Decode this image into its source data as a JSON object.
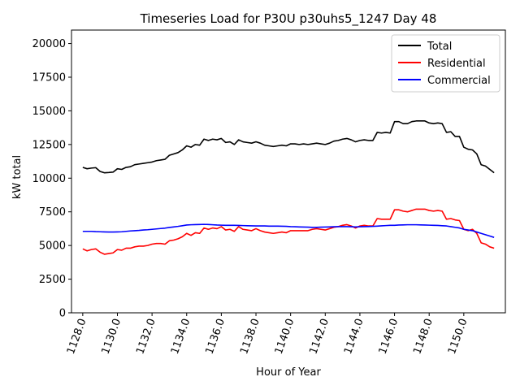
{
  "chart_data": {
    "type": "line",
    "title": "Timeseries Load for P30U p30uhs5_1247  Day 48",
    "xlabel": "Hour of Year",
    "ylabel": "kW total",
    "xlim": [
      1127.35,
      1152.4
    ],
    "ylim": [
      0,
      21000
    ],
    "xticks": [
      1128.0,
      1130.0,
      1132.0,
      1134.0,
      1136.0,
      1138.0,
      1140.0,
      1142.0,
      1144.0,
      1146.0,
      1148.0,
      1150.0
    ],
    "xtick_labels": [
      "1128.0",
      "1130.0",
      "1132.0",
      "1134.0",
      "1136.0",
      "1138.0",
      "1140.0",
      "1142.0",
      "1144.0",
      "1146.0",
      "1148.0",
      "1150.0"
    ],
    "yticks": [
      0,
      2500,
      5000,
      7500,
      10000,
      12500,
      15000,
      17500,
      20000
    ],
    "ytick_labels": [
      "0",
      "2500",
      "5000",
      "7500",
      "10000",
      "12500",
      "15000",
      "17500",
      "20000"
    ],
    "legend_position": "top-right",
    "x": [
      1128.0,
      1128.25,
      1128.5,
      1128.75,
      1129.0,
      1129.25,
      1129.5,
      1129.75,
      1130.0,
      1130.25,
      1130.5,
      1130.75,
      1131.0,
      1131.25,
      1131.5,
      1131.75,
      1132.0,
      1132.25,
      1132.5,
      1132.75,
      1133.0,
      1133.25,
      1133.5,
      1133.75,
      1134.0,
      1134.25,
      1134.5,
      1134.75,
      1135.0,
      1135.25,
      1135.5,
      1135.75,
      1136.0,
      1136.25,
      1136.5,
      1136.75,
      1137.0,
      1137.25,
      1137.5,
      1137.75,
      1138.0,
      1138.25,
      1138.5,
      1138.75,
      1139.0,
      1139.25,
      1139.5,
      1139.75,
      1140.0,
      1140.25,
      1140.5,
      1140.75,
      1141.0,
      1141.25,
      1141.5,
      1141.75,
      1142.0,
      1142.25,
      1142.5,
      1142.75,
      1143.0,
      1143.25,
      1143.5,
      1143.75,
      1144.0,
      1144.25,
      1144.5,
      1144.75,
      1145.0,
      1145.25,
      1145.5,
      1145.75,
      1146.0,
      1146.25,
      1146.5,
      1146.75,
      1147.0,
      1147.25,
      1147.5,
      1147.75,
      1148.0,
      1148.25,
      1148.5,
      1148.75,
      1149.0,
      1149.25,
      1149.5,
      1149.75,
      1150.0,
      1150.25,
      1150.5,
      1150.75,
      1151.0,
      1151.25,
      1151.5,
      1151.75
    ],
    "series": [
      {
        "name": "Total",
        "color": "#000000",
        "values": [
          10800,
          10700,
          10750,
          10780,
          10500,
          10400,
          10420,
          10450,
          10700,
          10650,
          10800,
          10850,
          11000,
          11050,
          11100,
          11150,
          11200,
          11300,
          11350,
          11400,
          11700,
          11800,
          11900,
          12100,
          12400,
          12300,
          12500,
          12450,
          12900,
          12800,
          12900,
          12850,
          12950,
          12650,
          12700,
          12500,
          12850,
          12700,
          12650,
          12600,
          12700,
          12600,
          12450,
          12400,
          12350,
          12400,
          12450,
          12400,
          12550,
          12550,
          12500,
          12550,
          12500,
          12550,
          12600,
          12550,
          12500,
          12600,
          12750,
          12800,
          12900,
          12950,
          12850,
          12700,
          12800,
          12850,
          12800,
          12800,
          13400,
          13350,
          13400,
          13350,
          14200,
          14200,
          14050,
          14050,
          14200,
          14250,
          14250,
          14250,
          14100,
          14050,
          14100,
          14050,
          13400,
          13450,
          13100,
          13100,
          12300,
          12150,
          12100,
          11800,
          11000,
          10900,
          10650,
          10400
        ]
      },
      {
        "name": "Residential",
        "color": "#ff0000",
        "values": [
          4750,
          4600,
          4700,
          4750,
          4500,
          4350,
          4400,
          4450,
          4700,
          4650,
          4800,
          4800,
          4900,
          4950,
          4950,
          5000,
          5100,
          5150,
          5150,
          5100,
          5350,
          5400,
          5500,
          5650,
          5900,
          5750,
          5950,
          5900,
          6300,
          6200,
          6300,
          6250,
          6400,
          6150,
          6200,
          6050,
          6400,
          6200,
          6150,
          6100,
          6250,
          6100,
          6000,
          5950,
          5900,
          5950,
          6000,
          5950,
          6100,
          6100,
          6100,
          6100,
          6100,
          6200,
          6250,
          6200,
          6150,
          6250,
          6350,
          6400,
          6500,
          6550,
          6450,
          6300,
          6450,
          6500,
          6450,
          6450,
          7000,
          6950,
          6950,
          6950,
          7650,
          7650,
          7550,
          7500,
          7600,
          7700,
          7700,
          7700,
          7600,
          7550,
          7600,
          7550,
          6950,
          7000,
          6900,
          6850,
          6200,
          6100,
          6200,
          5900,
          5200,
          5100,
          4900,
          4800
        ]
      },
      {
        "name": "Commercial",
        "color": "#0000ff",
        "values": [
          6050,
          6050,
          6050,
          6030,
          6020,
          6010,
          6000,
          6000,
          6010,
          6020,
          6050,
          6080,
          6100,
          6120,
          6150,
          6170,
          6200,
          6230,
          6260,
          6290,
          6340,
          6380,
          6420,
          6470,
          6520,
          6540,
          6550,
          6560,
          6570,
          6560,
          6540,
          6520,
          6510,
          6500,
          6500,
          6500,
          6490,
          6480,
          6470,
          6460,
          6450,
          6450,
          6450,
          6440,
          6440,
          6440,
          6430,
          6420,
          6400,
          6390,
          6380,
          6370,
          6360,
          6350,
          6350,
          6360,
          6370,
          6380,
          6390,
          6400,
          6400,
          6400,
          6390,
          6380,
          6390,
          6400,
          6410,
          6420,
          6440,
          6460,
          6480,
          6500,
          6500,
          6520,
          6530,
          6540,
          6540,
          6540,
          6530,
          6520,
          6510,
          6500,
          6490,
          6470,
          6450,
          6400,
          6350,
          6300,
          6200,
          6150,
          6100,
          6000,
          5900,
          5800,
          5700,
          5600
        ]
      }
    ]
  }
}
